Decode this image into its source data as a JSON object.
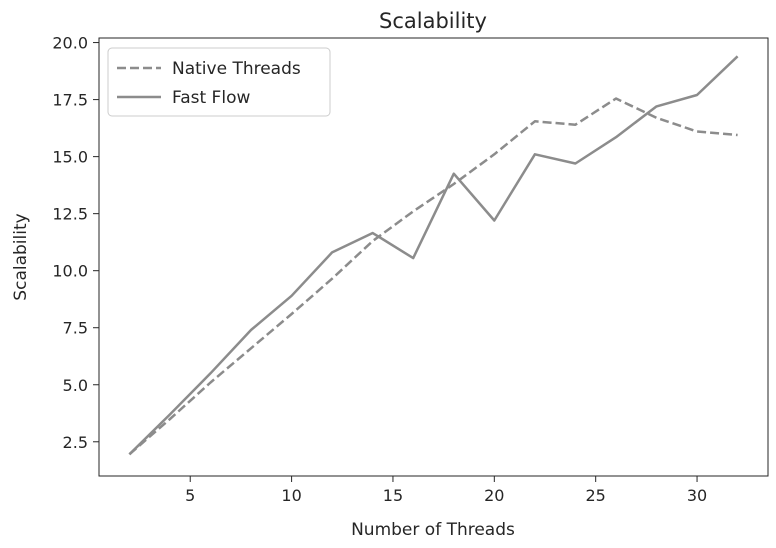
{
  "chart_data": {
    "type": "line",
    "title": "Scalability",
    "xlabel": "Number of Threads",
    "ylabel": "Scalability",
    "xlim": [
      0.5,
      33.5
    ],
    "ylim": [
      1.0,
      20.2
    ],
    "xticks": [
      5,
      10,
      15,
      20,
      25,
      30
    ],
    "yticks": [
      2.5,
      5.0,
      7.5,
      10.0,
      12.5,
      15.0,
      17.5,
      20.0
    ],
    "grid": false,
    "legend_position": "upper-left",
    "series": [
      {
        "name": "Native Threads",
        "style": "dashed",
        "color": "#8c8c8c",
        "x": [
          2,
          4,
          6,
          8,
          10,
          12,
          14,
          16,
          18,
          20,
          22,
          24,
          26,
          28,
          30,
          32
        ],
        "y": [
          1.95,
          3.5,
          5.1,
          6.6,
          8.1,
          9.65,
          11.3,
          12.6,
          13.8,
          15.1,
          16.55,
          16.4,
          17.55,
          16.7,
          16.1,
          15.95
        ]
      },
      {
        "name": "Fast Flow",
        "style": "solid",
        "color": "#8c8c8c",
        "x": [
          2,
          4,
          6,
          8,
          10,
          12,
          14,
          16,
          18,
          20,
          22,
          24,
          26,
          28,
          30,
          32
        ],
        "y": [
          1.95,
          3.7,
          5.5,
          7.4,
          8.9,
          10.8,
          11.65,
          10.55,
          14.25,
          12.2,
          15.1,
          14.7,
          15.85,
          17.2,
          17.7,
          19.4
        ]
      }
    ]
  }
}
